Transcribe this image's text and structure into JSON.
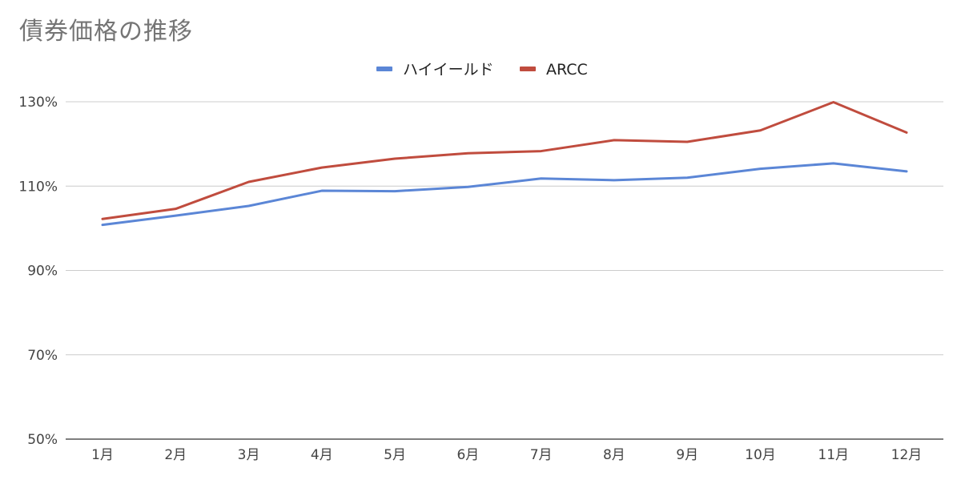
{
  "chart_data": {
    "type": "line",
    "title": "債券価格の推移",
    "categories": [
      "1月",
      "2月",
      "3月",
      "4月",
      "5月",
      "6月",
      "7月",
      "8月",
      "9月",
      "10月",
      "11月",
      "12月"
    ],
    "y_ticks": [
      "50%",
      "70%",
      "90%",
      "110%",
      "130%"
    ],
    "ylim": [
      50,
      130
    ],
    "y_unit": "%",
    "grid": true,
    "legend_position": "top-center",
    "series": [
      {
        "name": "ハイイールド",
        "color": "#5b86d6",
        "values": [
          100.8,
          103.0,
          105.3,
          108.9,
          108.8,
          109.8,
          111.8,
          111.4,
          112.0,
          114.1,
          115.4,
          113.5
        ]
      },
      {
        "name": "ARCC",
        "color": "#c04c3e",
        "values": [
          102.2,
          104.6,
          111.0,
          114.4,
          116.5,
          117.8,
          118.3,
          120.9,
          120.5,
          123.2,
          129.9,
          122.7
        ]
      }
    ]
  }
}
